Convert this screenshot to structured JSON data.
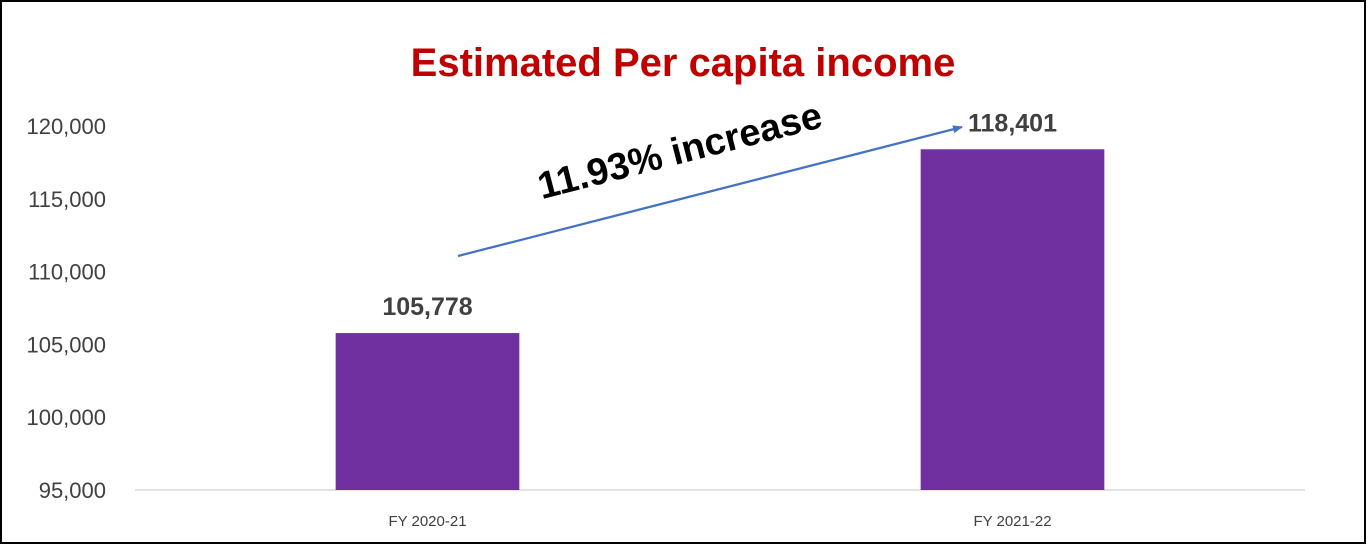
{
  "chart_data": {
    "type": "bar",
    "title": "Estimated Per capita income",
    "title_color": "#C00000",
    "categories": [
      "FY 2020-21",
      "FY 2021-22"
    ],
    "values": [
      105778,
      118401
    ],
    "data_labels": [
      "105,778",
      "118,401"
    ],
    "ylim": [
      95000,
      120000
    ],
    "yticks": [
      95000,
      100000,
      105000,
      110000,
      115000,
      120000
    ],
    "ytick_labels": [
      "95,000",
      "100,000",
      "105,000",
      "110,000",
      "115,000",
      "120,000"
    ],
    "bar_color": "#7030A0",
    "arrow_color": "#4472C4",
    "grid": false,
    "annotation": "11.93% increase"
  }
}
